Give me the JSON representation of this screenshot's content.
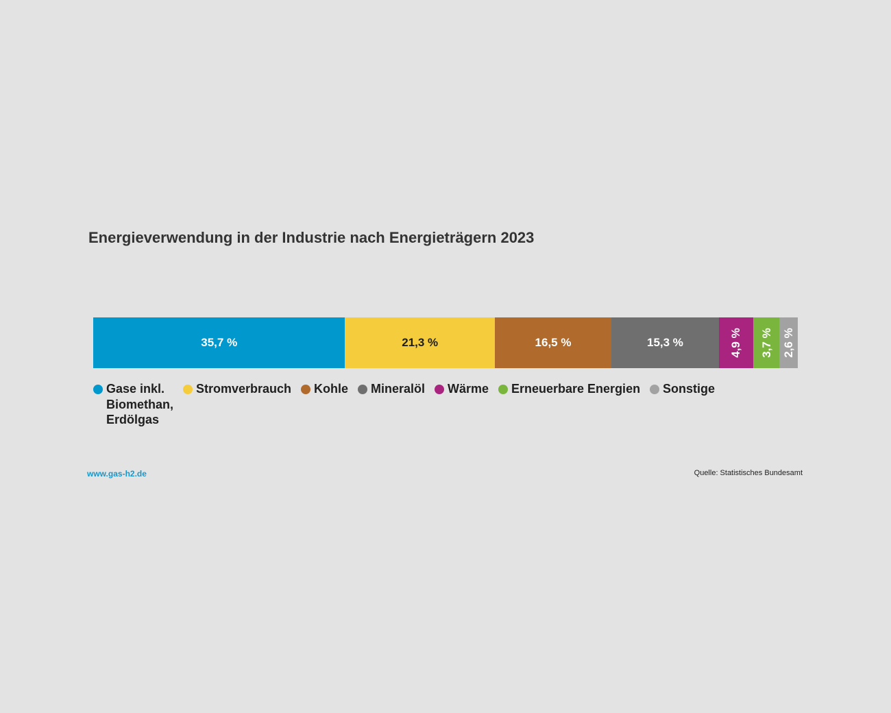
{
  "chart_data": {
    "type": "bar",
    "orientation": "horizontal-stacked-100",
    "title": "Energieverwendung in der Industrie nach Energieträgern 2023",
    "unit": "%",
    "series": [
      {
        "name": "Gase inkl. Biomethan, Erdölgas",
        "value": 35.7,
        "label": "35,7 %",
        "color": "#0098cd",
        "text_color": "#ffffff"
      },
      {
        "name": "Stromverbrauch",
        "value": 21.3,
        "label": "21,3 %",
        "color": "#f5cc3c",
        "text_color": "#1f1f1f"
      },
      {
        "name": "Kohle",
        "value": 16.5,
        "label": "16,5 %",
        "color": "#b06a2c",
        "text_color": "#ffffff"
      },
      {
        "name": "Mineralöl",
        "value": 15.3,
        "label": "15,3 %",
        "color": "#6f6f6f",
        "text_color": "#ffffff"
      },
      {
        "name": "Wärme",
        "value": 4.9,
        "label": "4,9 %",
        "color": "#a8247f",
        "text_color": "#ffffff"
      },
      {
        "name": "Erneuerbare Energien",
        "value": 3.7,
        "label": "3,7 %",
        "color": "#7ab53d",
        "text_color": "#ffffff"
      },
      {
        "name": "Sonstige",
        "value": 2.6,
        "label": "2,6 %",
        "color": "#a2a2a2",
        "text_color": "#ffffff"
      }
    ],
    "legend": {
      "placement": "bottom",
      "items": [
        {
          "label_lines": [
            "Gase inkl.",
            "Biomethan,",
            "Erdölgas"
          ],
          "color": "#0098cd"
        },
        {
          "label_lines": [
            "Stromverbrauch"
          ],
          "color": "#f5cc3c"
        },
        {
          "label_lines": [
            "Kohle"
          ],
          "color": "#b06a2c"
        },
        {
          "label_lines": [
            "Mineralöl"
          ],
          "color": "#6f6f6f"
        },
        {
          "label_lines": [
            "Wärme"
          ],
          "color": "#a8247f"
        },
        {
          "label_lines": [
            "Erneuerbare Energien"
          ],
          "color": "#7ab53d"
        },
        {
          "label_lines": [
            "Sonstige"
          ],
          "color": "#a2a2a2"
        }
      ]
    }
  },
  "footer": {
    "website": "www.gas-h2.de",
    "source": "Quelle: Statistisches Bundesamt"
  }
}
